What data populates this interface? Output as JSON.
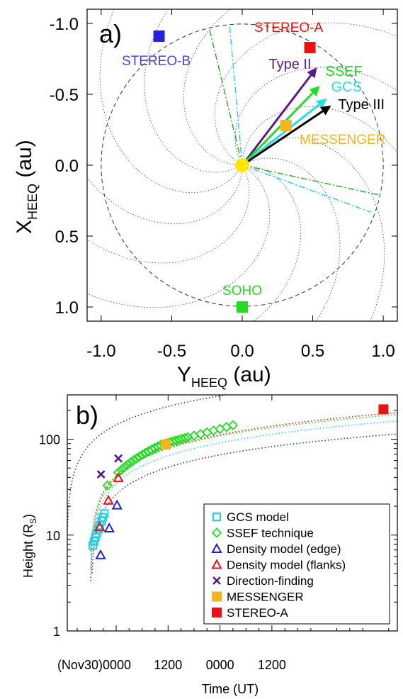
{
  "chart_data": [
    {
      "type": "scatter",
      "panel_label": "a)",
      "xlabel": "Y",
      "xlabel_sub": "HEEQ",
      "xlabel_unit": " (au)",
      "ylabel": "X",
      "ylabel_sub": "HEEQ",
      "ylabel_unit": " (au)",
      "xlim": [
        -1.1,
        1.1
      ],
      "ylim": [
        1.1,
        -1.1
      ],
      "y_inverted": true,
      "x_ticks": [
        "-1.0",
        "-0.5",
        "0.0",
        "0.5",
        "1.0"
      ],
      "y_ticks": [
        "-1.0",
        "-0.5",
        "0.0",
        "0.5",
        "1.0"
      ],
      "x_tick_values": [
        -1,
        -0.5,
        0,
        0.5,
        1
      ],
      "y_tick_values": [
        -1,
        -0.5,
        0,
        0.5,
        1
      ],
      "sun": {
        "y": 0.0,
        "x": 0.0,
        "color": "#ffe600"
      },
      "orbit_radius_au": 1.0,
      "spacecraft": [
        {
          "name": "STEREO-B",
          "y": -0.59,
          "x": -0.91,
          "color": "#2222dd",
          "label_color": "#4444ee",
          "anchor": "start"
        },
        {
          "name": "STEREO-A",
          "y": 0.48,
          "x": -0.83,
          "color": "#ee1111",
          "label_color": "#ee1111",
          "anchor": "middle"
        },
        {
          "name": "MESSENGER",
          "y": 0.31,
          "x": -0.28,
          "color": "#f2b51e",
          "label_color": "#f2b51e",
          "anchor": "middle"
        },
        {
          "name": "SOHO",
          "y": 0.0,
          "x": 1.0,
          "color": "#22dd22",
          "label_color": "#22dd22",
          "anchor": "middle"
        }
      ],
      "directions": [
        {
          "name": "Type II",
          "y": 0.53,
          "x": -0.69,
          "color": "#5a1a8a"
        },
        {
          "name": "SSEF",
          "y": 0.55,
          "x": -0.56,
          "color": "#22dd22"
        },
        {
          "name": "GCS",
          "y": 0.6,
          "x": -0.47,
          "color": "#22e0e8"
        },
        {
          "name": "Type III",
          "y": 0.63,
          "x": -0.42,
          "color": "#000000"
        }
      ],
      "angular_extent_lines": [
        {
          "series": "SSEF",
          "color": "#22aa22",
          "points": [
            [
              -0.23,
              -0.95
            ],
            [
              0.97,
              0.21
            ]
          ]
        },
        {
          "series": "GCS",
          "color": "#22d0e8",
          "points": [
            [
              -0.09,
              -0.99
            ],
            [
              0.91,
              0.33
            ]
          ]
        }
      ],
      "parker_spiral_count": 12,
      "grid": false
    },
    {
      "type": "scatter",
      "panel_label": "b)",
      "xlabel": "Time (UT)",
      "ylabel": "Height (R",
      "ylabel_sub": "S",
      "ylabel_close": ")",
      "x_unit": "hours since 2012-11-30 00:00 UT",
      "xlim": [
        -11.3,
        65
      ],
      "ylim": [
        1,
        290
      ],
      "y_scale": "log",
      "x_ticks": [
        "(Nov30)0000",
        "1200",
        "0000",
        "1200"
      ],
      "x_tick_values": [
        0,
        12,
        24,
        36
      ],
      "y_ticks": [
        "1",
        "10",
        "100"
      ],
      "y_tick_values": [
        1,
        10,
        100
      ],
      "grid": false,
      "legend_position": "lower-right",
      "series": [
        {
          "name": "GCS model",
          "marker": "open-square",
          "color": "#22d0e8",
          "x": [
            -5.4,
            -5.1,
            -4.8,
            -4.5,
            -4.1,
            -3.8,
            -3.4,
            -3.1,
            -2.7
          ],
          "y": [
            7.8,
            8.6,
            9.5,
            10.4,
            11.5,
            12.6,
            14.0,
            15.3,
            16.8
          ]
        },
        {
          "name": "SSEF technique",
          "marker": "open-diamond",
          "color": "#22dd22",
          "x": [
            -2,
            0.5,
            1.2,
            1.9,
            2.6,
            3.3,
            4.0,
            4.7,
            5.4,
            6.1,
            6.8,
            7.5,
            8.2,
            8.9,
            9.6,
            10.3,
            11.0,
            11.7,
            12.4,
            13.1,
            13.8,
            14.5,
            15.2,
            15.9,
            16.6,
            18.0,
            19.5,
            21.0,
            22.5,
            24.0,
            25.5,
            27.0
          ],
          "y": [
            33,
            45,
            48,
            51,
            54,
            57,
            60,
            63,
            66,
            69,
            72,
            75,
            78,
            81,
            84,
            87,
            89,
            91,
            93,
            95,
            97,
            99,
            101,
            103,
            105,
            109,
            113,
            118,
            123,
            128,
            134,
            140
          ]
        },
        {
          "name": "Density model (edge)",
          "marker": "open-triangle",
          "color": "#2222dd",
          "x": [
            -3.6,
            0.2,
            -1.6
          ],
          "y": [
            6.2,
            20.5,
            11.8
          ]
        },
        {
          "name": "Density model (flanks)",
          "marker": "open-triangle",
          "color": "#ee1111",
          "x": [
            -3.8,
            -1.8,
            0.5
          ],
          "y": [
            12.2,
            23.0,
            39.5
          ]
        },
        {
          "name": "Direction-finding",
          "marker": "x",
          "color": "#5a1a8a",
          "x": [
            -3.5,
            0.5
          ],
          "y": [
            43,
            63
          ]
        },
        {
          "name": "MESSENGER",
          "marker": "filled-square",
          "color": "#f2b51e",
          "x": [
            11.5
          ],
          "y": [
            88
          ]
        },
        {
          "name": "STEREO-A",
          "marker": "filled-square",
          "color": "#ee1111",
          "x": [
            61.8
          ],
          "y": [
            205
          ]
        }
      ],
      "fit_curves": [
        {
          "series": "Direction-finding",
          "color": "#5a1a8a"
        },
        {
          "series": "Density model (edge)",
          "color": "#2222dd"
        },
        {
          "series": "Density model (flanks)",
          "color": "#ee1111"
        },
        {
          "series": "SSEF technique",
          "color": "#22dd22"
        },
        {
          "series": "GCS model",
          "color": "#22d0e8"
        }
      ]
    }
  ]
}
